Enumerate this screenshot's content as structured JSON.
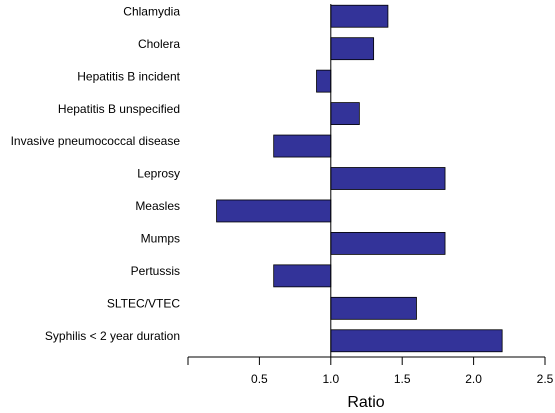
{
  "chart_data": {
    "type": "bar",
    "orientation": "horizontal",
    "xlabel": "Ratio",
    "categories": [
      "Chlamydia",
      "Cholera",
      "Hepatitis B incident",
      "Hepatitis B unspecified",
      "Invasive pneumococcal disease",
      "Leprosy",
      "Measles",
      "Mumps",
      "Pertussis",
      "SLTEC/VTEC",
      "Syphilis < 2 year duration"
    ],
    "values": [
      1.4,
      1.3,
      0.9,
      1.2,
      0.6,
      1.8,
      0.2,
      1.8,
      0.6,
      1.6,
      2.2
    ],
    "baseline": 1,
    "color": "#333399",
    "xlim": [
      0,
      2.5
    ],
    "xticks": [
      0.5,
      1.0,
      1.5,
      2.0,
      2.5
    ]
  }
}
